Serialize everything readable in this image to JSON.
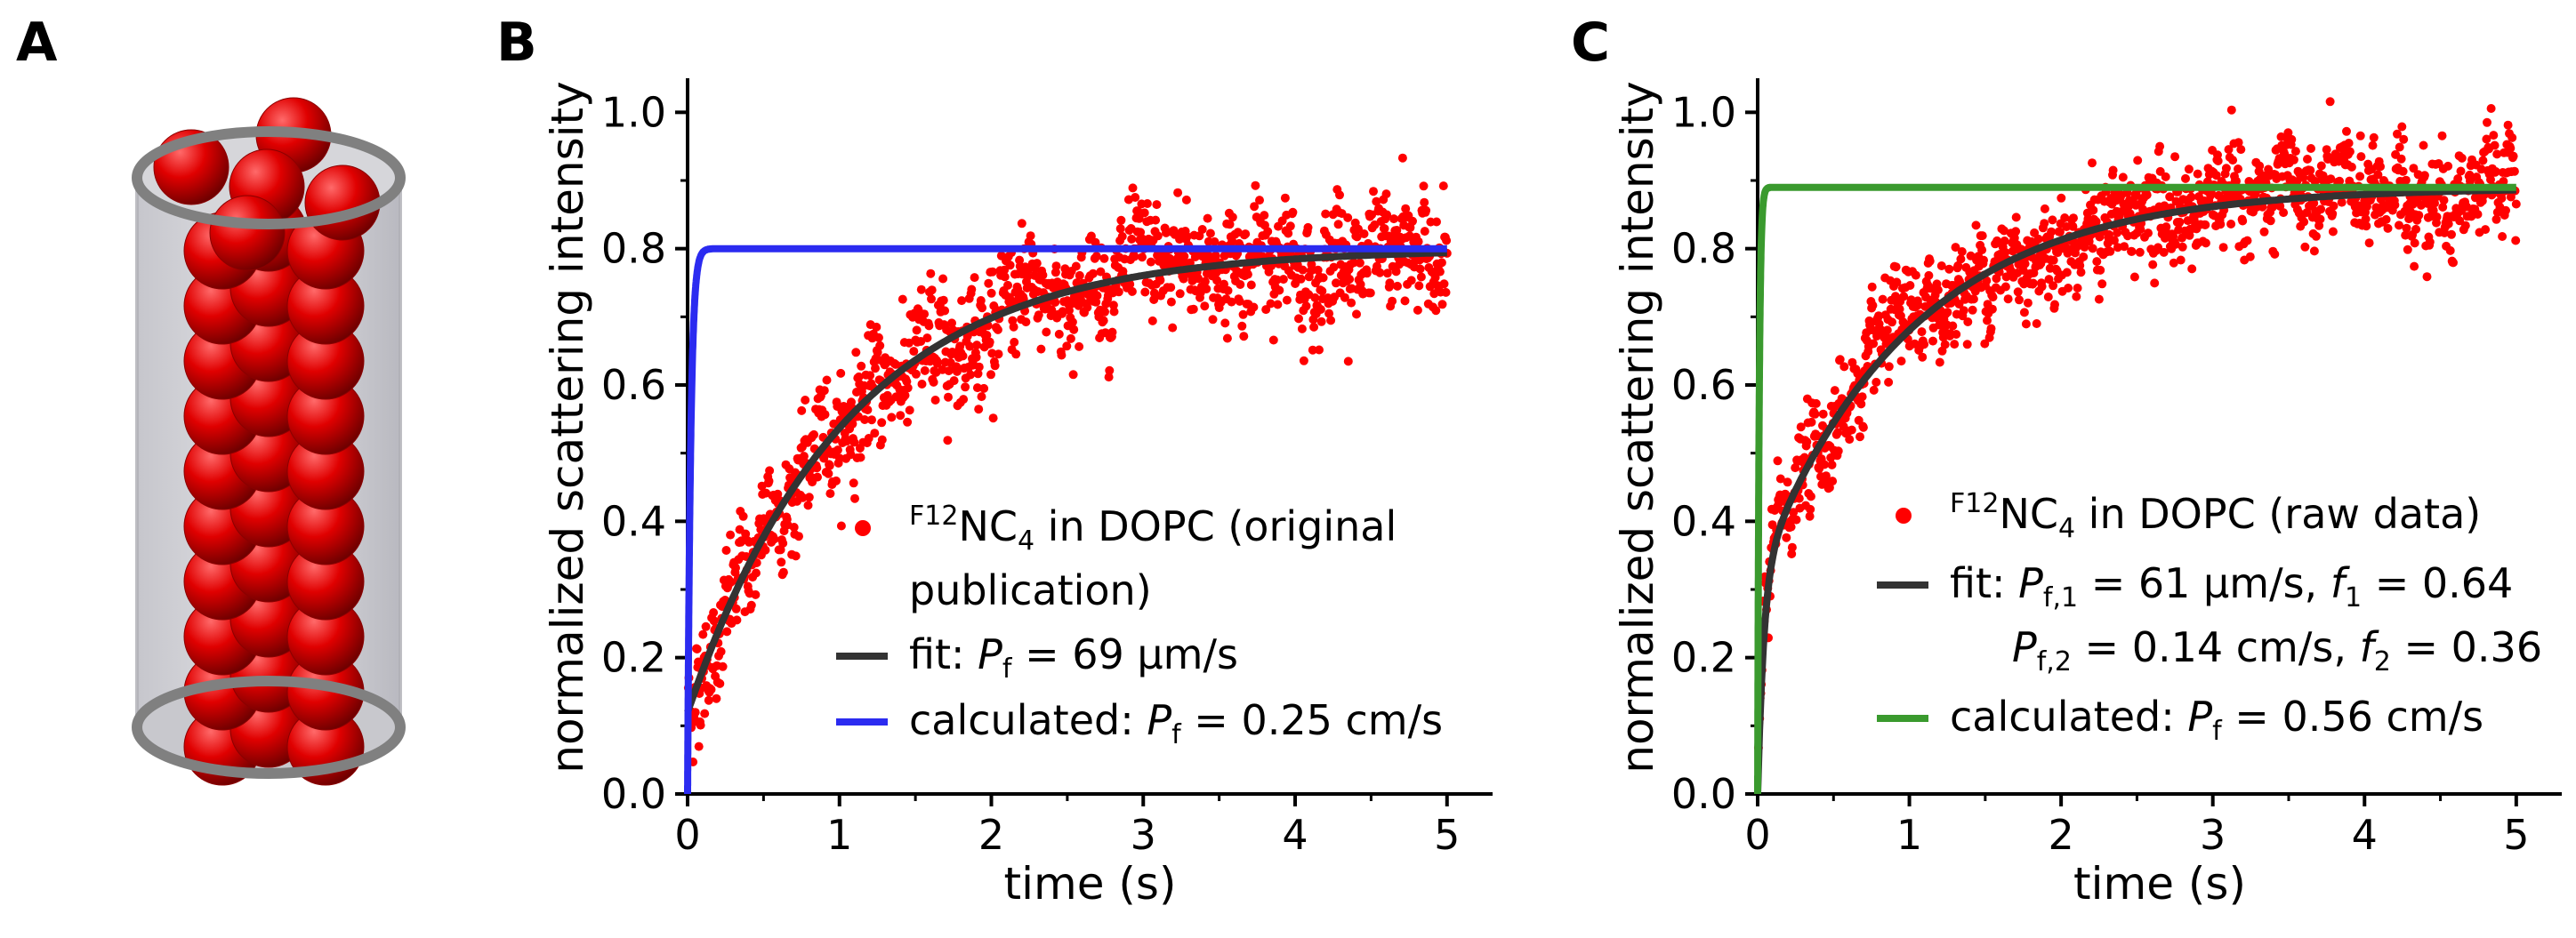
{
  "panels": {
    "a": {
      "letter": "A"
    },
    "b": {
      "letter": "B"
    },
    "c": {
      "letter": "C"
    }
  },
  "colors": {
    "data": "#ff0000",
    "fit": "#333333",
    "calc_b": "#2b2bf0",
    "calc_c": "#3a9a2e",
    "sphere": "#e00000",
    "cylinder_edge": "#808080",
    "cylinder_fill": "#d4d4d8"
  },
  "chart_data": [
    {
      "panel": "B",
      "type": "scatter",
      "xlabel": "time (s)",
      "ylabel": "normalized scattering intensity",
      "xlim": [
        0,
        5.3
      ],
      "ylim": [
        0,
        1.05
      ],
      "xticks": [
        "0",
        "1",
        "2",
        "3",
        "4",
        "5"
      ],
      "yticks": [
        "0.0",
        "0.2",
        "0.4",
        "0.6",
        "0.8",
        "1.0"
      ],
      "series": [
        {
          "name": "F12NC4 in DOPC (original publication)",
          "kind": "points",
          "amplitude": 0.8,
          "offset": 0.12,
          "rate": 0.95,
          "noise": 0.05
        },
        {
          "name": "fit",
          "kind": "line",
          "amplitude": 0.8,
          "offset": 0.12,
          "rate": 0.95
        },
        {
          "name": "calculated",
          "kind": "line",
          "amplitude": 0.8,
          "rate": 50
        }
      ],
      "legend": [
        {
          "kind": "dot",
          "sup": "F12",
          "main": "NC",
          "sub": "4",
          "rest": " in DOPC (original",
          "line2": "publication)"
        },
        {
          "kind": "line",
          "prefix": "fit: ",
          "var": "P",
          "varsub": "f",
          "rest": " = 69 µm/s"
        },
        {
          "kind": "line",
          "prefix": "calculated: ",
          "var": "P",
          "varsub": "f",
          "rest": " = 0.25 cm/s"
        }
      ]
    },
    {
      "panel": "C",
      "type": "scatter",
      "xlabel": "time (s)",
      "ylabel": "normalized scattering intensity",
      "xlim": [
        0,
        5.3
      ],
      "ylim": [
        0,
        1.05
      ],
      "xticks": [
        "0",
        "1",
        "2",
        "3",
        "4",
        "5"
      ],
      "yticks": [
        "0.0",
        "0.2",
        "0.4",
        "0.6",
        "0.8",
        "1.0"
      ],
      "series": [
        {
          "name": "F12NC4 in DOPC (raw data)",
          "kind": "points",
          "amplitude": 0.89,
          "f1": 0.64,
          "rate1": 1.0,
          "f2": 0.36,
          "rate2": 25,
          "noise": 0.045
        },
        {
          "name": "fit",
          "kind": "line",
          "amplitude": 0.89,
          "f1": 0.64,
          "rate1": 1.0,
          "f2": 0.36,
          "rate2": 25
        },
        {
          "name": "calculated",
          "kind": "line",
          "amplitude": 0.89,
          "rate": 100
        }
      ],
      "legend": [
        {
          "kind": "dot",
          "sup": "F12",
          "main": "NC",
          "sub": "4",
          "rest": " in DOPC (raw data)"
        },
        {
          "kind": "line",
          "prefix": "fit: ",
          "var": "P",
          "varsub": "f,1",
          "rest": " = 61 µm/s, ",
          "var2": "f",
          "var2sub": "1",
          "rest2": " = 0.64"
        },
        {
          "kind": "none",
          "var": "P",
          "varsub": "f,2",
          "rest": " = 0.14 cm/s, ",
          "var2": "f",
          "var2sub": "2",
          "rest2": " = 0.36"
        },
        {
          "kind": "line",
          "prefix": "calculated: ",
          "var": "P",
          "varsub": "f",
          "rest": " = 0.56 cm/s"
        }
      ]
    }
  ]
}
